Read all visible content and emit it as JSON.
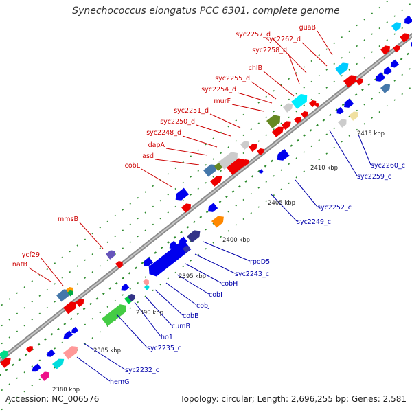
{
  "title": "Synechococcus elongatus PCC 6301, complete genome",
  "footer": {
    "accession": "Accession: NC_006576",
    "topology": "Topology: circular; Length: 2,696,255 bp; Genes: 2,581"
  },
  "colors": {
    "forward_label": "#cc0000",
    "reverse_label": "#0000aa",
    "backbone": "#8c8c8c",
    "tick": "#2e8b2e"
  },
  "scale_labels": [
    "2380 kbp",
    "2385 kbp",
    "2390 kbp",
    "2395 kbp",
    "2400 kbp",
    "2405 kbp",
    "2410 kbp",
    "2415 kbp"
  ],
  "forward_labels": [
    "natB",
    "ycf29",
    "mmsB",
    "cobL",
    "asd",
    "dapA",
    "syc2248_d",
    "syc2250_d",
    "syc2251_d",
    "murF",
    "syc2254_d",
    "syc2255_d",
    "chlB",
    "syc2258_d",
    "syc2257_d",
    "syc2262_d",
    "guaB"
  ],
  "reverse_labels": [
    "syc2232_c",
    "hemG",
    "syc2235_c",
    "ho1",
    "cumB",
    "cobB",
    "cobJ",
    "cobI",
    "cobH",
    "syc2243_c",
    "rpoD5",
    "syc2249_c",
    "syc2252_c",
    "syc2259_c",
    "syc2260_c"
  ]
}
